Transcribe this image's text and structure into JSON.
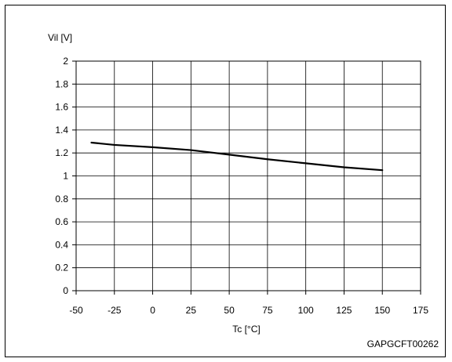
{
  "chart_data": {
    "type": "line",
    "ylabel": "Vil [V]",
    "xlabel": "Tc [°C]",
    "xlim": [
      -50,
      175
    ],
    "ylim": [
      0,
      2
    ],
    "x_ticks": [
      -50,
      -25,
      0,
      25,
      50,
      75,
      100,
      125,
      150,
      175
    ],
    "y_ticks": [
      0,
      0.2,
      0.4,
      0.6,
      0.8,
      1,
      1.2,
      1.4,
      1.6,
      1.8,
      2
    ],
    "grid": true,
    "series": [
      {
        "x": [
          -40,
          -25,
          0,
          25,
          50,
          75,
          100,
          125,
          150
        ],
        "y": [
          1.29,
          1.27,
          1.25,
          1.225,
          1.185,
          1.145,
          1.11,
          1.075,
          1.05
        ]
      }
    ]
  },
  "footer": {
    "code": "GAPGCFT00262"
  }
}
